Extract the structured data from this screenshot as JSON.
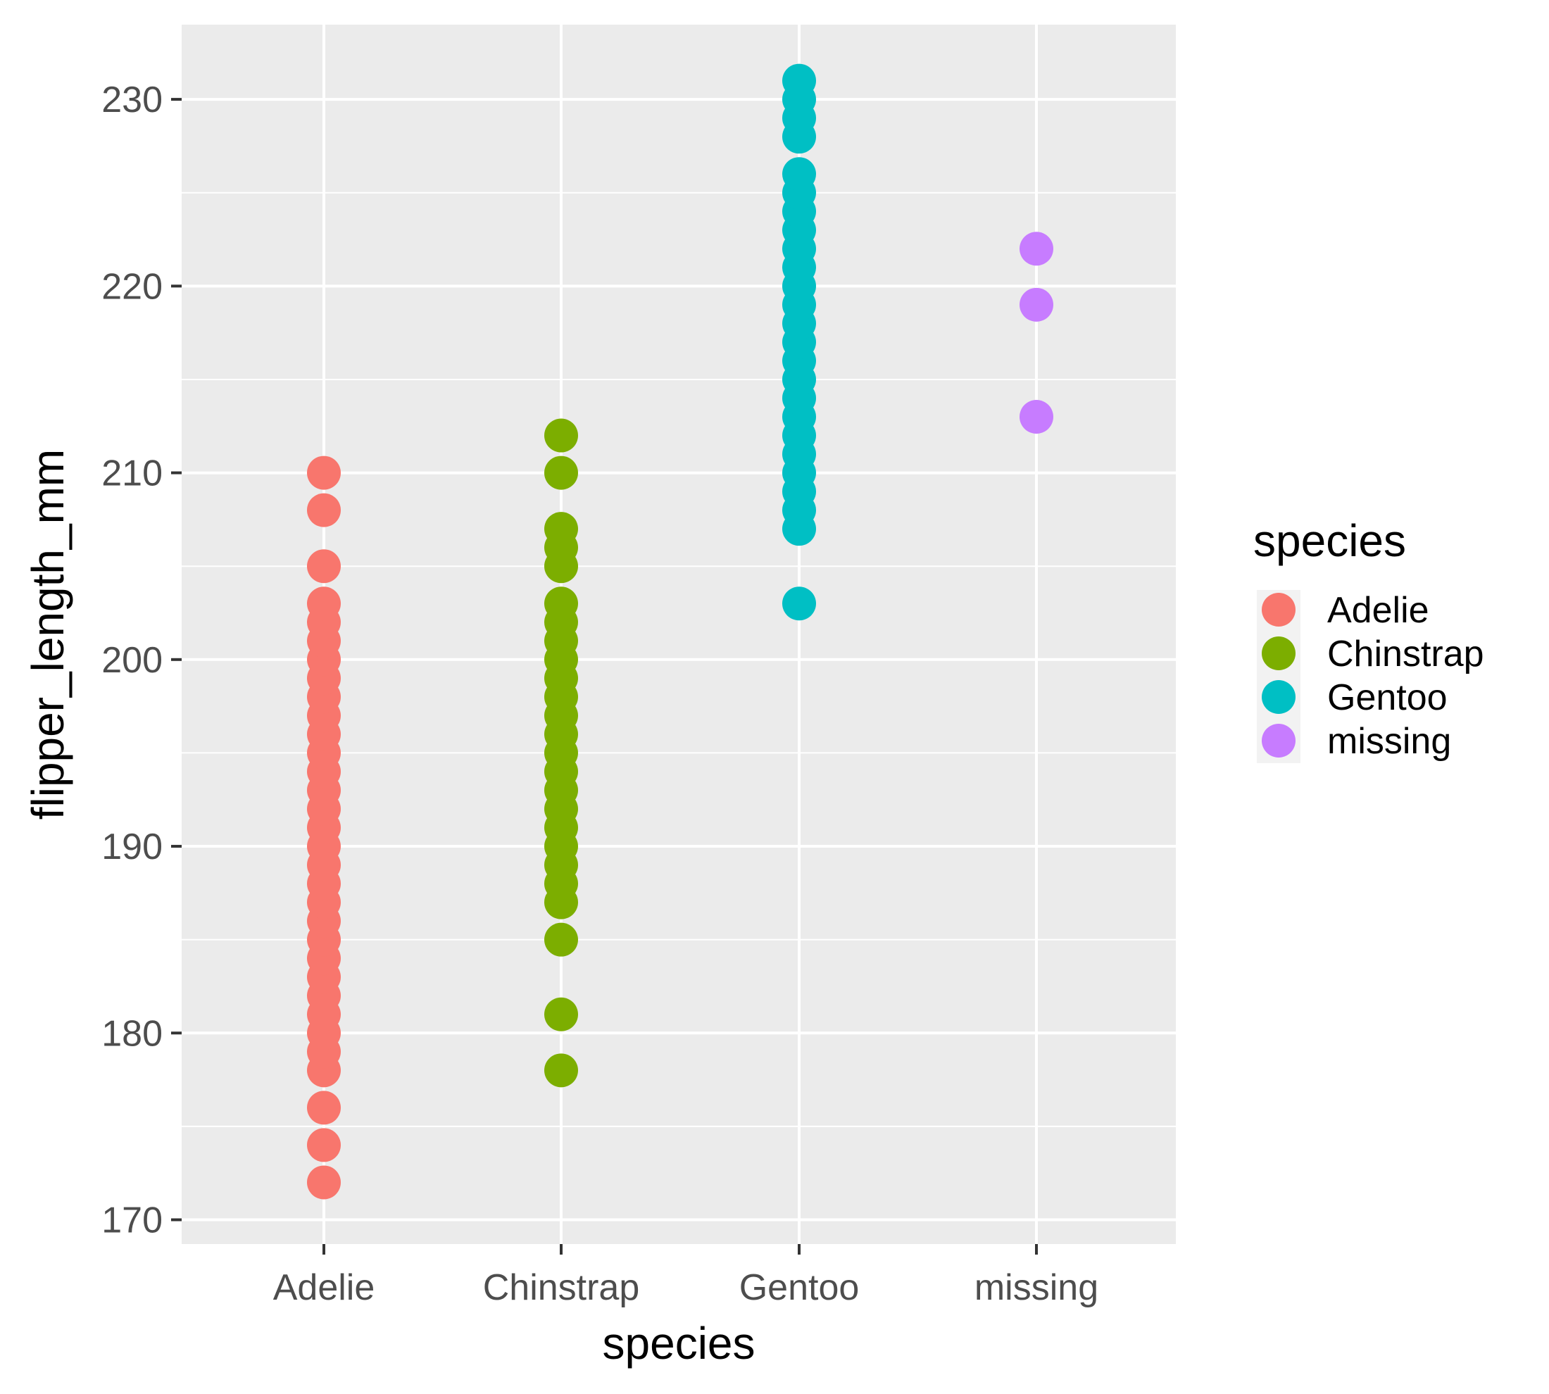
{
  "chart_data": {
    "type": "scatter",
    "xlabel": "species",
    "ylabel": "flipper_length_mm",
    "categories": [
      "Adelie",
      "Chinstrap",
      "Gentoo",
      "missing"
    ],
    "ylim": [
      168.7,
      234.0
    ],
    "yticks": [
      170,
      180,
      190,
      200,
      210,
      220,
      230
    ],
    "grid": true,
    "legend_placement": "right",
    "legend": {
      "title": "species",
      "entries": [
        "Adelie",
        "Chinstrap",
        "Gentoo",
        "missing"
      ]
    },
    "colors": {
      "Adelie": "#F8766D",
      "Chinstrap": "#7CAE00",
      "Gentoo": "#00BFC4",
      "missing": "#C77CFF",
      "panel": "#EBEBEB",
      "grid": "#FFFFFF"
    },
    "series": [
      {
        "name": "Adelie",
        "category": "Adelie",
        "values": [
          172,
          174,
          176,
          178,
          179,
          180,
          181,
          182,
          183,
          184,
          185,
          186,
          187,
          188,
          189,
          190,
          191,
          192,
          193,
          194,
          195,
          196,
          197,
          198,
          199,
          200,
          201,
          202,
          203,
          205,
          208,
          210
        ]
      },
      {
        "name": "Chinstrap",
        "category": "Chinstrap",
        "values": [
          178,
          181,
          185,
          187,
          188,
          189,
          190,
          191,
          192,
          193,
          194,
          195,
          196,
          197,
          198,
          199,
          200,
          201,
          202,
          203,
          205,
          206,
          207,
          210,
          212
        ]
      },
      {
        "name": "Gentoo",
        "category": "Gentoo",
        "values": [
          203,
          207,
          208,
          209,
          210,
          211,
          212,
          213,
          214,
          215,
          216,
          217,
          218,
          219,
          220,
          221,
          222,
          223,
          224,
          225,
          226,
          228,
          229,
          230,
          231
        ]
      },
      {
        "name": "missing",
        "category": "missing",
        "values": [
          213,
          219,
          222
        ]
      }
    ]
  }
}
